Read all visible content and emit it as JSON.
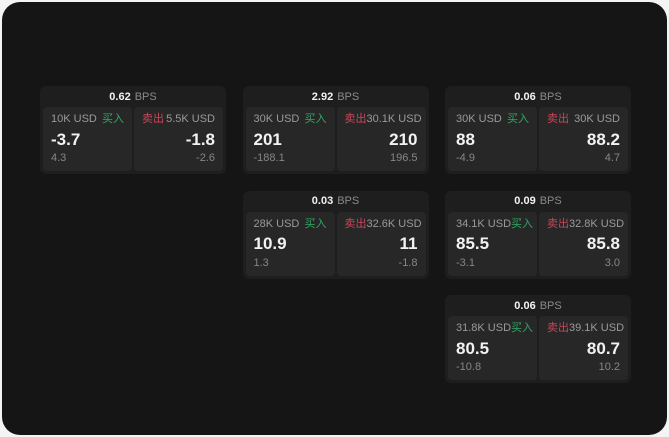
{
  "labels": {
    "bps_unit": "BPS",
    "buy": "买入",
    "sell": "卖出"
  },
  "colors": {
    "buy_green": "#31a863",
    "sell_red": "#c7465a",
    "panel_bg": "#151515",
    "card_bg": "#1e1e1e",
    "subpanel_bg": "#272727"
  },
  "cards": [
    {
      "bps": "0.62",
      "grid": {
        "col": 1,
        "row": 1
      },
      "buy": {
        "amount": "10K USD",
        "price": "-3.7",
        "delta": "4.3"
      },
      "sell": {
        "amount": "5.5K USD",
        "price": "-1.8",
        "delta": "-2.6"
      }
    },
    {
      "bps": "2.92",
      "grid": {
        "col": 2,
        "row": 1
      },
      "buy": {
        "amount": "30K USD",
        "price": "201",
        "delta": "-188.1"
      },
      "sell": {
        "amount": "30.1K USD",
        "price": "210",
        "delta": "196.5"
      }
    },
    {
      "bps": "0.06",
      "grid": {
        "col": 3,
        "row": 1
      },
      "buy": {
        "amount": "30K USD",
        "price": "88",
        "delta": "-4.9"
      },
      "sell": {
        "amount": "30K USD",
        "price": "88.2",
        "delta": "4.7"
      }
    },
    {
      "bps": "0.03",
      "grid": {
        "col": 2,
        "row": 2
      },
      "buy": {
        "amount": "28K USD",
        "price": "10.9",
        "delta": "1.3"
      },
      "sell": {
        "amount": "32.6K USD",
        "price": "11",
        "delta": "-1.8"
      }
    },
    {
      "bps": "0.09",
      "grid": {
        "col": 3,
        "row": 2
      },
      "buy": {
        "amount": "34.1K USD",
        "price": "85.5",
        "delta": "-3.1"
      },
      "sell": {
        "amount": "32.8K USD",
        "price": "85.8",
        "delta": "3.0"
      }
    },
    {
      "bps": "0.06",
      "grid": {
        "col": 3,
        "row": 3
      },
      "buy": {
        "amount": "31.8K USD",
        "price": "80.5",
        "delta": "-10.8"
      },
      "sell": {
        "amount": "39.1K USD",
        "price": "80.7",
        "delta": "10.2"
      }
    }
  ]
}
